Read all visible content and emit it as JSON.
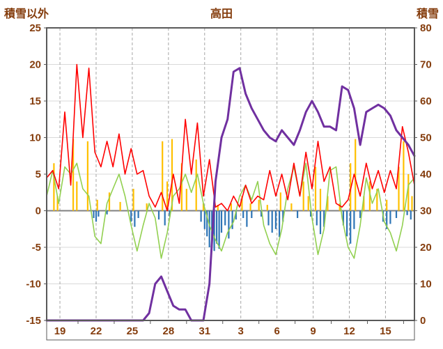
{
  "colors": {
    "red": "#FF0000",
    "green": "#92D050",
    "orange": "#FFC000",
    "blue": "#2E75B6",
    "purple": "#7030A0",
    "axis_text": "#843C0C",
    "grid": "#D9D9D9",
    "grid_dash": "#A6A6A6",
    "zero": "#808080",
    "border": "#595959"
  },
  "chart_data": {
    "type": "line+bar",
    "title": "高田",
    "left_axis": {
      "label": "積雪以外",
      "min": -15,
      "max": 25,
      "ticks": [
        25,
        20,
        15,
        10,
        5,
        0,
        -5,
        -10,
        -15
      ]
    },
    "right_axis": {
      "label": "積雪",
      "min": 0,
      "max": 80,
      "ticks": [
        80,
        70,
        60,
        50,
        40,
        30,
        20,
        10,
        0
      ]
    },
    "x_axis": {
      "span_days": 30.5,
      "tick_days": [
        1.1,
        4.1,
        7.1,
        10.1,
        13.1,
        16.1,
        19.1,
        22.1,
        25.1,
        28.1
      ],
      "tick_labels": [
        "19",
        "22",
        "25",
        "28",
        "31",
        "3",
        "6",
        "9",
        "12",
        "15"
      ]
    },
    "series": [
      {
        "id": "orange-bars",
        "type": "bar",
        "axis": "left",
        "color": "#FFC000",
        "points": [
          [
            0.6,
            6.5
          ],
          [
            0.9,
            2
          ],
          [
            2.2,
            9.8
          ],
          [
            2.5,
            4
          ],
          [
            3.4,
            9.5
          ],
          [
            4.2,
            1.5
          ],
          [
            5.2,
            2.5
          ],
          [
            6.1,
            1.2
          ],
          [
            7.2,
            3
          ],
          [
            8.3,
            1
          ],
          [
            9.6,
            9.5
          ],
          [
            10.0,
            4
          ],
          [
            10.4,
            9.8
          ],
          [
            11.2,
            6.5
          ],
          [
            11.6,
            3
          ],
          [
            12.4,
            7
          ],
          [
            13.0,
            1
          ],
          [
            14.2,
            0.8
          ],
          [
            15.3,
            1
          ],
          [
            16.2,
            2
          ],
          [
            16.9,
            1
          ],
          [
            17.6,
            1.5
          ],
          [
            18.3,
            0.8
          ],
          [
            19.4,
            2.5
          ],
          [
            20.3,
            1
          ],
          [
            21.3,
            4
          ],
          [
            21.7,
            2
          ],
          [
            22.3,
            6
          ],
          [
            22.7,
            3
          ],
          [
            23.3,
            2
          ],
          [
            24.3,
            1
          ],
          [
            25.2,
            6.5
          ],
          [
            25.6,
            9.8
          ],
          [
            26.3,
            2
          ],
          [
            26.8,
            4
          ],
          [
            27.4,
            3
          ],
          [
            28.2,
            1.5
          ],
          [
            29.2,
            6
          ],
          [
            29.6,
            9.5
          ],
          [
            30.0,
            5
          ],
          [
            30.3,
            2
          ]
        ]
      },
      {
        "id": "blue-bars",
        "type": "bar",
        "axis": "left",
        "color": "#2E75B6",
        "points": [
          [
            3.9,
            -1
          ],
          [
            4.1,
            -1.5
          ],
          [
            4.3,
            -0.8
          ],
          [
            5.0,
            -0.5
          ],
          [
            7.0,
            -1.5
          ],
          [
            7.3,
            -2.2
          ],
          [
            7.6,
            -1
          ],
          [
            9.3,
            -1.2
          ],
          [
            9.8,
            -2
          ],
          [
            10.2,
            -0.8
          ],
          [
            12.8,
            -1.5
          ],
          [
            13.1,
            -2.5
          ],
          [
            13.3,
            -3.5
          ],
          [
            13.5,
            -5
          ],
          [
            13.7,
            -4
          ],
          [
            13.9,
            -5.5
          ],
          [
            14.1,
            -4.5
          ],
          [
            14.3,
            -5.2
          ],
          [
            14.5,
            -3
          ],
          [
            14.8,
            -2
          ],
          [
            15.1,
            -3.8
          ],
          [
            15.4,
            -2.5
          ],
          [
            15.7,
            -1.2
          ],
          [
            16.3,
            -1
          ],
          [
            16.6,
            -2.2
          ],
          [
            17.0,
            -1
          ],
          [
            17.8,
            -0.8
          ],
          [
            18.4,
            -2
          ],
          [
            18.7,
            -3
          ],
          [
            19.0,
            -2.5
          ],
          [
            19.3,
            -3.6
          ],
          [
            19.6,
            -1.5
          ],
          [
            20.8,
            -1
          ],
          [
            21.9,
            -0.8
          ],
          [
            22.4,
            -2
          ],
          [
            22.7,
            -3.2
          ],
          [
            23.0,
            -2.2
          ],
          [
            24.6,
            -2
          ],
          [
            24.9,
            -3.5
          ],
          [
            25.2,
            -4.5
          ],
          [
            25.5,
            -2.5
          ],
          [
            26.0,
            -1
          ],
          [
            27.9,
            -1.5
          ],
          [
            28.2,
            -2.5
          ],
          [
            28.5,
            -1.8
          ],
          [
            29.0,
            -1
          ],
          [
            29.9,
            -0.6
          ],
          [
            30.2,
            -1.2
          ]
        ]
      },
      {
        "id": "green-line",
        "type": "line",
        "axis": "left",
        "color": "#92D050",
        "width": 1.6,
        "x_step": 0.5,
        "values": [
          2,
          5.5,
          1,
          6,
          5,
          6.5,
          3,
          2,
          -3.5,
          -4.5,
          1,
          3,
          5,
          2,
          -2,
          -5.5,
          -2,
          1,
          -1,
          -6.5,
          -3,
          2,
          3,
          5,
          2.5,
          5,
          1,
          -2,
          -4,
          -5.5,
          -3,
          -1.5,
          2,
          3.5,
          1.5,
          4,
          -2,
          -4.5,
          -6,
          -2.5,
          3,
          6,
          2,
          6.5,
          -1,
          -6,
          -2.5,
          5.5,
          6,
          -1,
          -5,
          -6.5,
          -2,
          4.5,
          1,
          3,
          -1.5,
          -3,
          -5.5,
          -2,
          3.5,
          4.5
        ]
      },
      {
        "id": "red-line",
        "type": "line",
        "axis": "left",
        "color": "#FF0000",
        "width": 1.6,
        "x_step": 0.5,
        "values": [
          4.5,
          5.5,
          3,
          13.5,
          3.5,
          20,
          10,
          19.5,
          8,
          6,
          9.5,
          6,
          10.5,
          5,
          8.5,
          5,
          5.5,
          2,
          0.5,
          2.5,
          0,
          5,
          1,
          12.5,
          5,
          12,
          2,
          7,
          0.5,
          1,
          0,
          2,
          0.5,
          3.5,
          1,
          2,
          1.5,
          5.5,
          2,
          5,
          1.5,
          6.5,
          2,
          8,
          3,
          9.5,
          4,
          6,
          1,
          0.5,
          1.5,
          5,
          2,
          6.5,
          3,
          5.5,
          2.5,
          5.5,
          3,
          11.5,
          8,
          3.5
        ]
      },
      {
        "id": "purple-snow-line",
        "type": "line",
        "axis": "right",
        "color": "#7030A0",
        "width": 3,
        "x_step": 0.5,
        "values": [
          0,
          0,
          0,
          0,
          0,
          0,
          0,
          0,
          0,
          0,
          0,
          0,
          0,
          0,
          0,
          0,
          0,
          2,
          10,
          12,
          8,
          4,
          3,
          3,
          0,
          0,
          0,
          10,
          38,
          50,
          55,
          68,
          69,
          62,
          58,
          55,
          52,
          50,
          49,
          52,
          50,
          48,
          52,
          57,
          60,
          57,
          53,
          53,
          52,
          64,
          63,
          58,
          48,
          57,
          58,
          59,
          58,
          56,
          52,
          50,
          48,
          45
        ]
      }
    ]
  }
}
